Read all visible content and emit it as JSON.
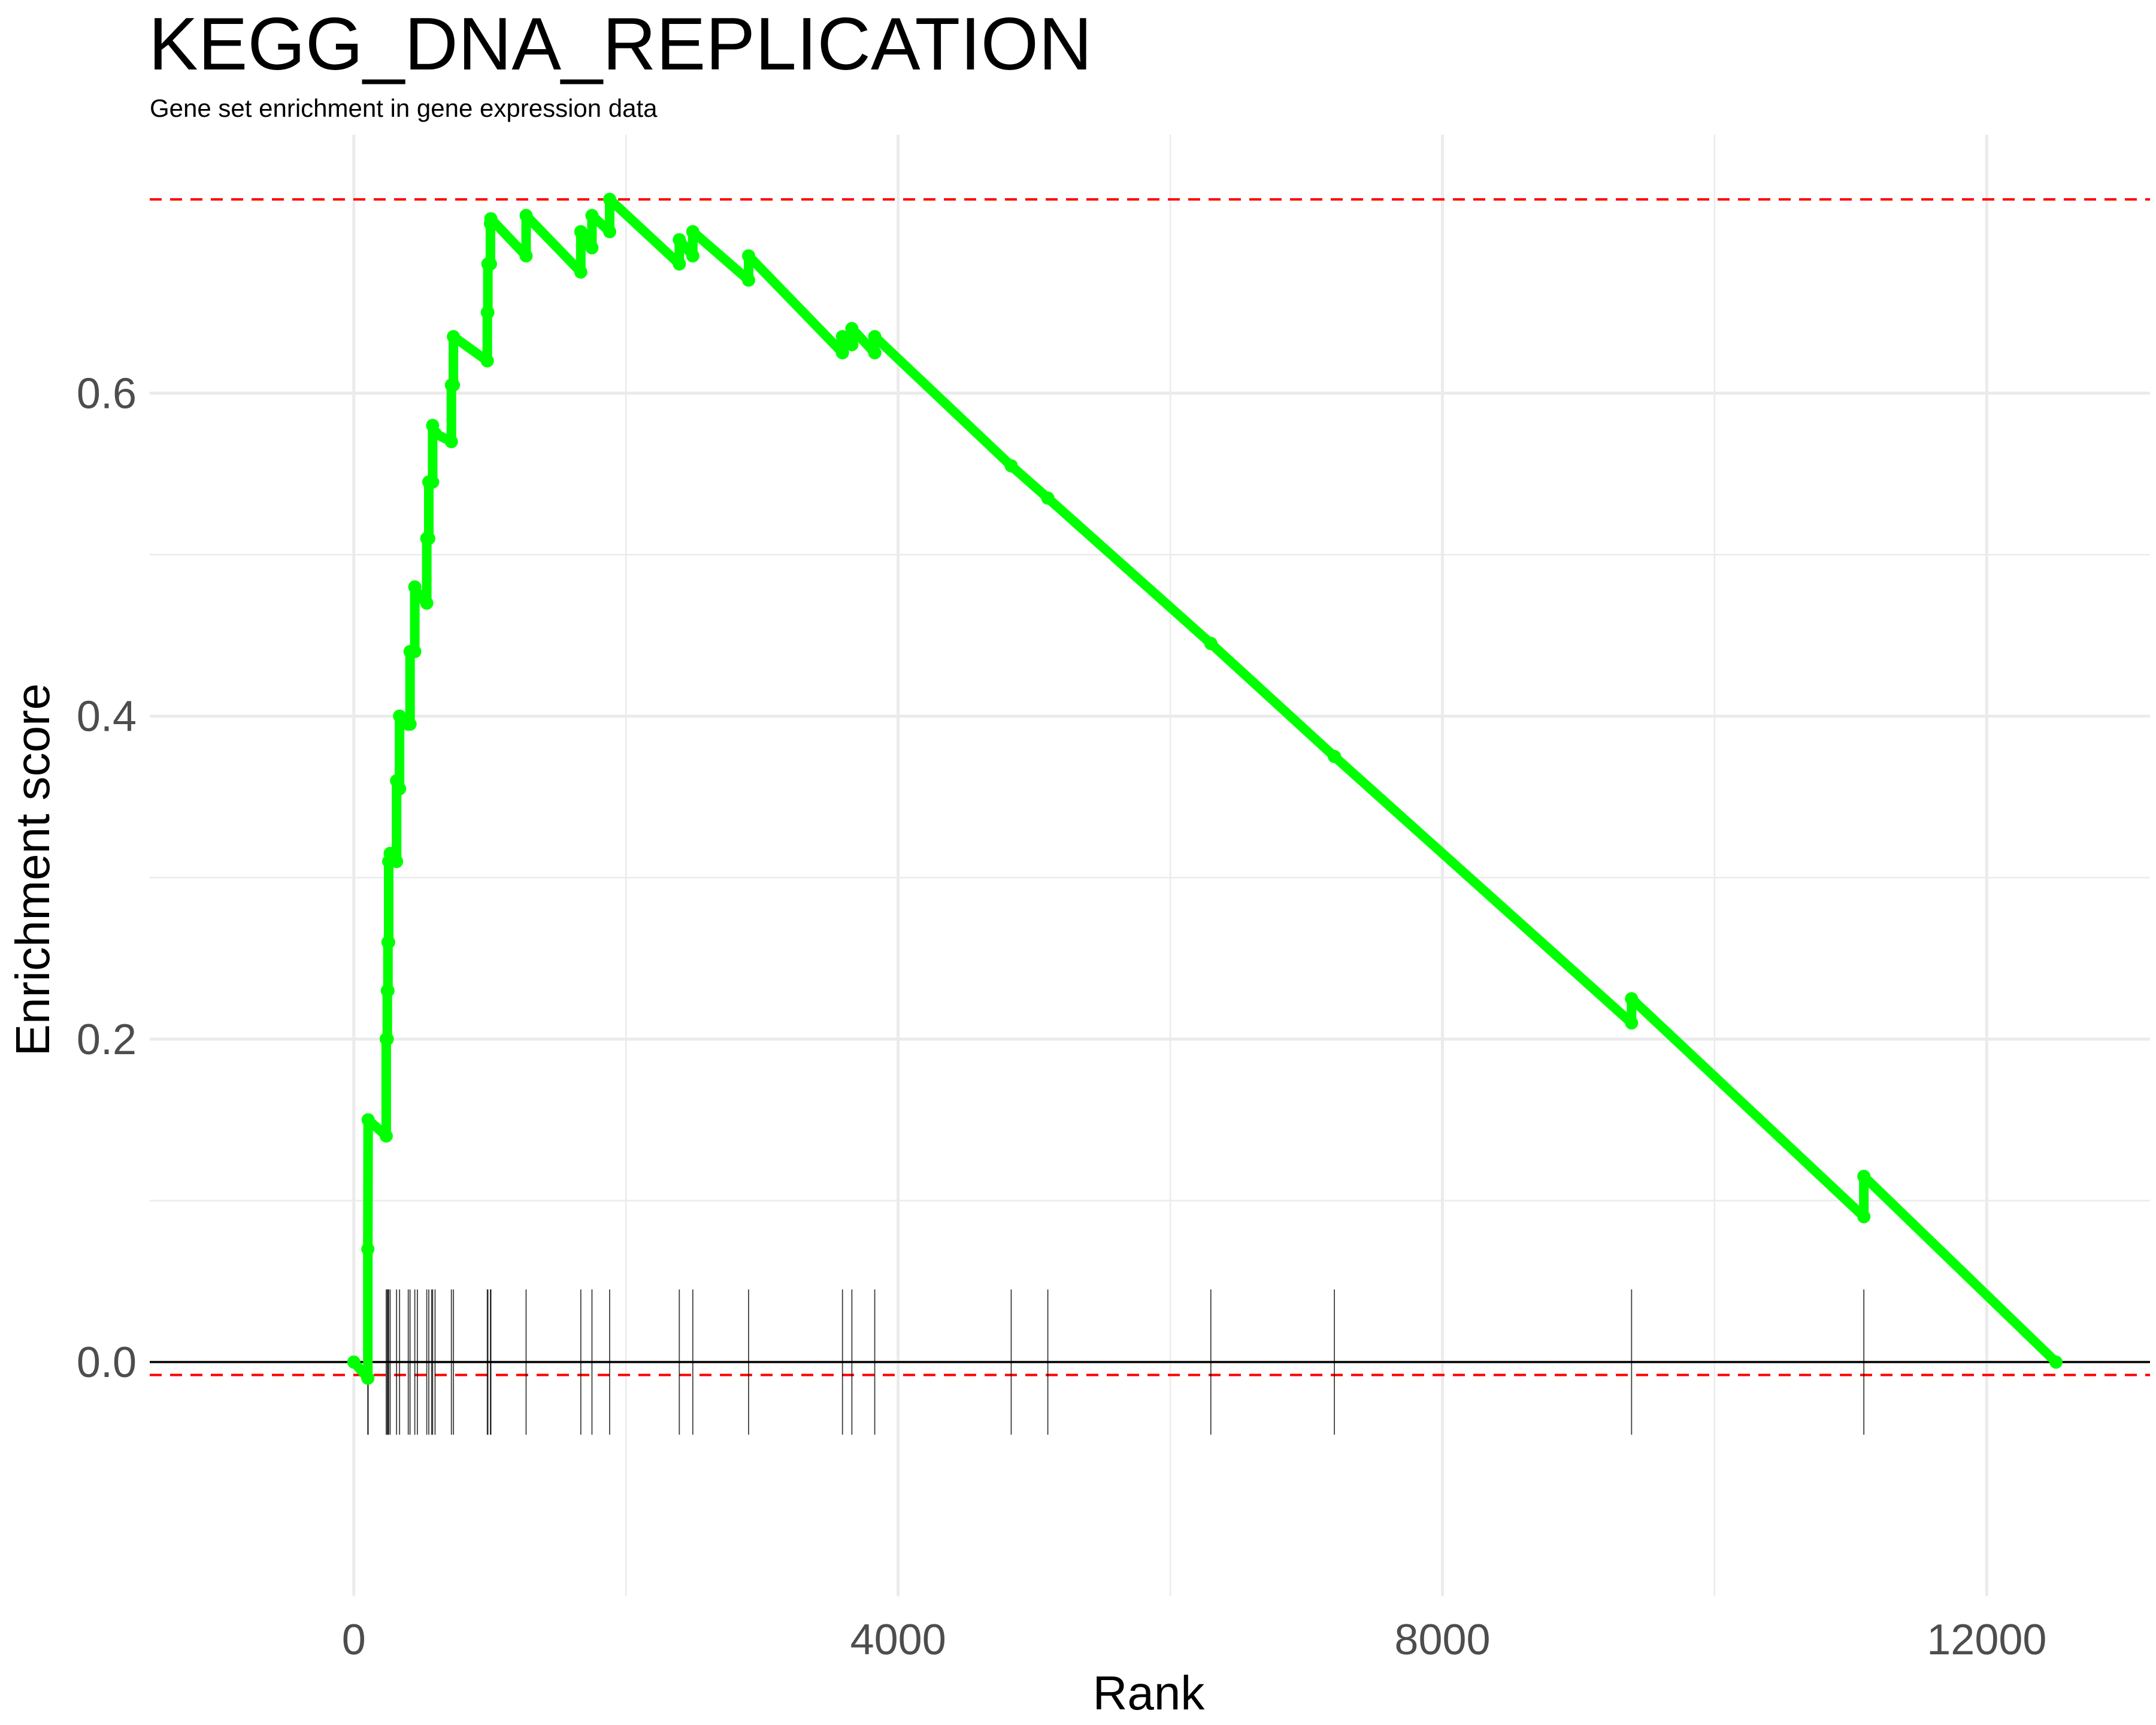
{
  "chart_data": {
    "type": "line",
    "title": "KEGG_DNA_REPLICATION",
    "subtitle": "Gene set enrichment in gene expression data",
    "xlabel": "Rank",
    "ylabel": "Enrichment score",
    "xlim": [
      -1500,
      13200
    ],
    "ylim": [
      -0.145,
      0.76
    ],
    "x_ticks": [
      0,
      4000,
      8000,
      12000
    ],
    "x_tick_labels": [
      "0",
      "4000",
      "8000",
      "12000"
    ],
    "y_ticks": [
      0.0,
      0.2,
      0.4,
      0.6
    ],
    "y_tick_labels": [
      "0.0",
      "0.2",
      "0.4",
      "0.6"
    ],
    "grid": true,
    "colors": {
      "curve": "#00ff00",
      "threshold": "#ff0000",
      "zero_line": "#000000",
      "rug": "#000000",
      "grid": "#ebebeb"
    },
    "thresholds": [
      0.72,
      -0.008
    ],
    "series": [
      {
        "x": [
          0,
          103,
          103,
          105,
          238,
          238,
          246,
          246,
          251,
          251,
          256,
          256,
          267,
          267,
          314,
          314,
          336,
          336,
          400,
          400,
          413,
          413,
          448,
          448,
          467,
          467,
          536,
          536,
          551,
          551,
          572,
          572,
          579,
          579,
          597,
          597,
          717,
          717,
          732,
          732,
          981,
          981,
          985,
          985,
          1004,
          1004,
          1007,
          1007,
          1266,
          1266,
          1668,
          1668,
          1750,
          1750,
          1880,
          1880,
          2392,
          2392,
          2491,
          2491,
          2901,
          2901,
          3591,
          3591,
          3660,
          3660,
          3828,
          3828,
          4831,
          4831,
          5100,
          5100,
          6298,
          6298,
          7206,
          7206,
          9390,
          9390,
          11097,
          11097,
          12509
        ],
        "y": [
          0.0,
          -0.01,
          0.07,
          0.15,
          0.14,
          0.2,
          0.2,
          0.23,
          0.23,
          0.26,
          0.26,
          0.31,
          0.31,
          0.315,
          0.31,
          0.36,
          0.355,
          0.4,
          0.395,
          0.395,
          0.395,
          0.44,
          0.44,
          0.48,
          0.475,
          0.475,
          0.47,
          0.51,
          0.51,
          0.545,
          0.545,
          0.545,
          0.545,
          0.58,
          0.575,
          0.575,
          0.57,
          0.605,
          0.605,
          0.635,
          0.62,
          0.65,
          0.65,
          0.68,
          0.68,
          0.705,
          0.705,
          0.708,
          0.685,
          0.71,
          0.675,
          0.7,
          0.69,
          0.71,
          0.7,
          0.72,
          0.68,
          0.695,
          0.685,
          0.7,
          0.67,
          0.685,
          0.625,
          0.635,
          0.63,
          0.64,
          0.625,
          0.635,
          0.555,
          0.555,
          0.535,
          0.535,
          0.445,
          0.445,
          0.375,
          0.375,
          0.21,
          0.225,
          0.09,
          0.115,
          0.0
        ]
      }
    ],
    "rug_positions": [
      103,
      105,
      238,
      246,
      251,
      256,
      267,
      314,
      336,
      400,
      413,
      448,
      467,
      536,
      551,
      572,
      579,
      597,
      717,
      732,
      981,
      985,
      1004,
      1007,
      1266,
      1668,
      1750,
      1880,
      2392,
      2491,
      2901,
      3591,
      3660,
      3828,
      4831,
      5100,
      6298,
      7206,
      9390,
      11097
    ]
  }
}
